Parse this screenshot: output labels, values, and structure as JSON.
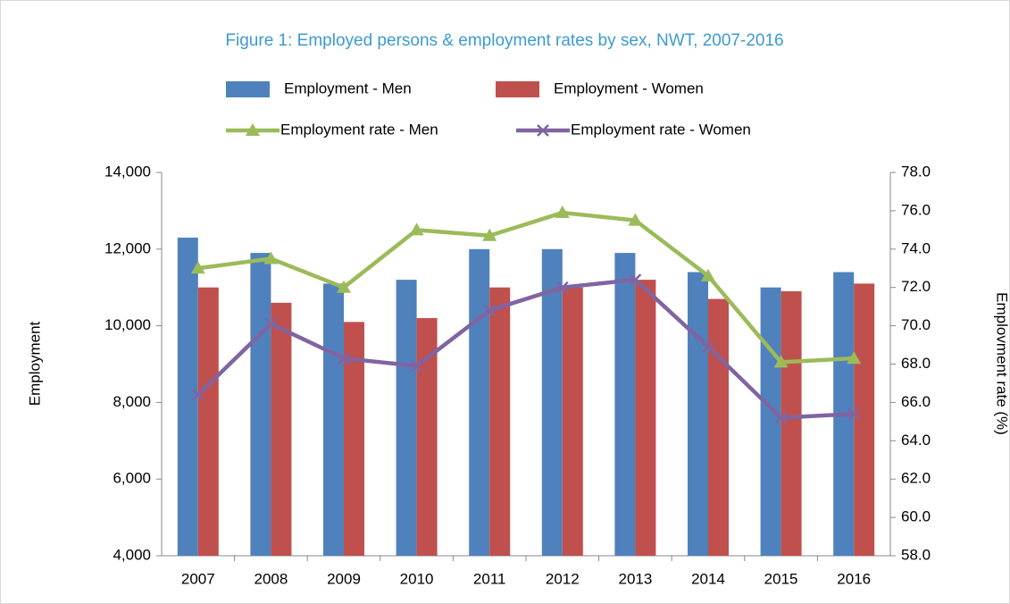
{
  "chart_data": {
    "type": "bar-line",
    "title": "Figure 1: Employed persons & employment rates by sex, NWT, 2007-2016",
    "y_label": "Employment",
    "y2_label": "Emplovment rate (%)",
    "categories": [
      "2007",
      "2008",
      "2009",
      "2010",
      "2011",
      "2012",
      "2013",
      "2014",
      "2015",
      "2016"
    ],
    "series": [
      {
        "name": "Employment - Men",
        "type": "bar",
        "color": "#4f81bd",
        "values": [
          12300,
          11900,
          11100,
          11200,
          12000,
          12000,
          11900,
          11400,
          11000,
          11400
        ]
      },
      {
        "name": "Employment - Women",
        "type": "bar",
        "color": "#c0504d",
        "values": [
          11000,
          10600,
          10100,
          10200,
          11000,
          11000,
          11200,
          10700,
          10900,
          11100
        ]
      },
      {
        "name": "Employment rate - Men",
        "type": "line",
        "marker": "triangle",
        "axis": "y2",
        "color": "#9bbb59",
        "values": [
          73.0,
          73.5,
          72.0,
          75.0,
          74.7,
          75.9,
          75.5,
          72.6,
          68.1,
          68.3
        ]
      },
      {
        "name": "Employment rate - Women",
        "type": "line",
        "marker": "x",
        "axis": "y2",
        "color": "#8064a2",
        "values": [
          66.4,
          70.1,
          68.3,
          67.9,
          70.8,
          72.0,
          72.4,
          68.9,
          65.2,
          65.4
        ]
      }
    ],
    "ylim": [
      4000,
      14000
    ],
    "yticks": [
      {
        "value": 4000,
        "label": "4,000"
      },
      {
        "value": 6000,
        "label": "6,000"
      },
      {
        "value": 8000,
        "label": "8,000"
      },
      {
        "value": 10000,
        "label": "10,000"
      },
      {
        "value": 12000,
        "label": "12,000"
      },
      {
        "value": 14000,
        "label": "14,000"
      }
    ],
    "y2lim": [
      58,
      78
    ],
    "y2ticks": [
      {
        "value": 58,
        "label": "58.0"
      },
      {
        "value": 60,
        "label": "60.0"
      },
      {
        "value": 62,
        "label": "62.0"
      },
      {
        "value": 64,
        "label": "64.0"
      },
      {
        "value": 66,
        "label": "66.0"
      },
      {
        "value": 68,
        "label": "68.0"
      },
      {
        "value": 70,
        "label": "70.0"
      },
      {
        "value": 72,
        "label": "72.0"
      },
      {
        "value": 74,
        "label": "74.0"
      },
      {
        "value": 76,
        "label": "76.0"
      },
      {
        "value": 78,
        "label": "78.0"
      }
    ],
    "grid": false,
    "legend": "top"
  }
}
